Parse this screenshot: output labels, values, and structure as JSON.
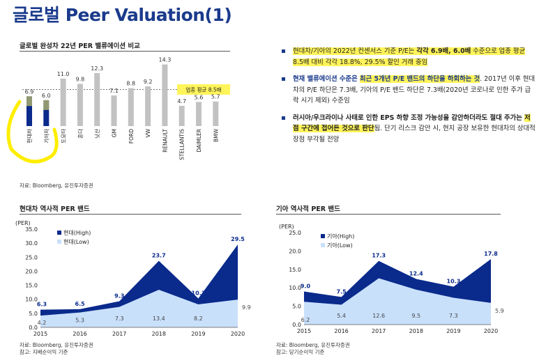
{
  "page_title": "글로벌 Peer Valuation(1)",
  "colors": {
    "highlight": "#fff45a",
    "navy": "#0a2a8c",
    "light_blue": "#c9e0fb",
    "grey_bar": "#c2c2c2",
    "title_blue": "#1a3a8c"
  },
  "bullets": [
    {
      "pre": "현대차/기아의 2022년 컨센서스 기준 P/E는 ",
      "mid": "각각 6.9배, 6.0배",
      "post": " 수준으로 업종 평균 8.5배 대비 각각 18.8%, 29.5% 할인 거래 중임"
    },
    {
      "bold1": "현재 밸류에이션 수준은 ",
      "hl": "최근 5개년 P/E 밴드의 하단을 하회하는 것",
      "post": ". 2017년 이후 현대차의 P/E 하단은 7.3배, 기아의 P/E 밴드 하단은 7.3배(2020년 코로나로 인한 주가 급락 시기 제외) 수준임"
    },
    {
      "bold1": "러시아/우크라이나 사태로 인한 EPS 하향 조정 가능성을 감안하더라도 절대 주가는 ",
      "hl": "저점 구간에 접어든 것으로 판단",
      "post": "됨. 단기 리스크 감안 시, 현지 공장 보유한 현대차의 상대적 장점 부각될 전망"
    }
  ],
  "chart_data": [
    {
      "type": "bar",
      "title": "글로벌 완성차 22년 PER 밸류에이션 비교",
      "categories": [
        "현대차",
        "기아차",
        "도요타",
        "혼다",
        "닛산",
        "GM",
        "FORD",
        "VW",
        "RENAULT",
        "STELLANTIS",
        "DAIMLER",
        "BMW"
      ],
      "values": [
        6.9,
        6.0,
        11.0,
        9.8,
        12.3,
        7.1,
        8.8,
        9.2,
        14.3,
        4.7,
        5.6,
        5.7
      ],
      "value_labels": [
        "6.9",
        "6.0",
        "11.0",
        "9.8",
        "12.3",
        "7.1",
        "8.8",
        "9.2",
        "14.3",
        "4.7",
        "5.6",
        "5.7"
      ],
      "reference_line": {
        "value": 8.5,
        "label": "업종 평균 8.5배"
      },
      "ylim": [
        0,
        16
      ],
      "source": "자료: Bloomberg, 유진투자증권"
    },
    {
      "type": "area",
      "title": "현대차 역사적 PER 밴드",
      "unit": "(PER)",
      "x": [
        "2015",
        "2016",
        "2017",
        "2018",
        "2019",
        "2020"
      ],
      "series": [
        {
          "name": "현대(High)",
          "values": [
            6.3,
            6.5,
            9.3,
            23.7,
            10.3,
            29.5
          ],
          "labels": [
            "6.3",
            "6.5",
            "9.3",
            "23.7",
            "10.3",
            "29.5"
          ]
        },
        {
          "name": "현대(Low)",
          "values": [
            4.2,
            5.3,
            7.3,
            13.4,
            8.2,
            9.9
          ],
          "labels": [
            "4.2",
            "5.3",
            "7.3",
            "13.4",
            "8.2",
            "9.9"
          ]
        }
      ],
      "yticks": [
        "0.0",
        "5.0",
        "10.0",
        "15.0",
        "20.0",
        "25.0",
        "30.0",
        "35.0"
      ],
      "ylim": [
        0,
        35
      ],
      "source": "자료: Bloomberg, 유진투자증권",
      "note": "참고: 지배순이익 기준"
    },
    {
      "type": "area",
      "title": "기아 역사적 PER 밴드",
      "unit": "(PER)",
      "x": [
        "2015",
        "2016",
        "2017",
        "2018",
        "2019",
        "2020"
      ],
      "series": [
        {
          "name": "기아(High)",
          "values": [
            9.0,
            7.5,
            17.3,
            12.4,
            10.3,
            17.8
          ],
          "labels": [
            "9.0",
            "7.5",
            "17.3",
            "12.4",
            "10.3",
            "17.8"
          ]
        },
        {
          "name": "기아(Low)",
          "values": [
            6.2,
            5.4,
            12.6,
            9.5,
            7.3,
            5.9
          ],
          "labels": [
            "6.2",
            "5.4",
            "12.6",
            "9.5",
            "7.3",
            "5.9"
          ]
        }
      ],
      "yticks": [
        "0.0",
        "5.0",
        "10.0",
        "15.0",
        "20.0",
        "25.0"
      ],
      "ylim": [
        0,
        25
      ],
      "source": "자료: Bloomberg, 유진투자증권",
      "note": "참고: 당기순이익 기준"
    }
  ]
}
